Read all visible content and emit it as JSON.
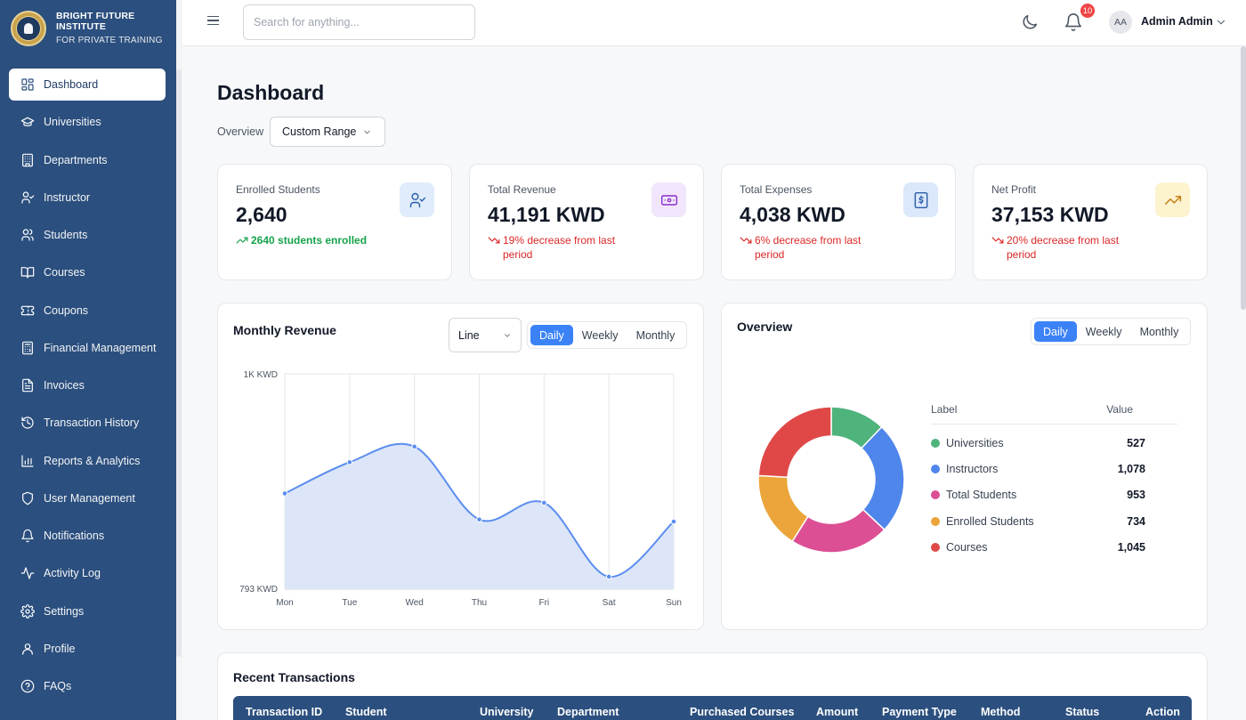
{
  "brand": {
    "name_line1": "BRIGHT FUTURE INSTITUTE",
    "name_line2": "FOR PRIVATE TRAINING"
  },
  "sidebar": {
    "items": [
      {
        "label": "Dashboard",
        "icon": "dashboard-icon",
        "active": true
      },
      {
        "label": "Universities",
        "icon": "graduation-cap-icon"
      },
      {
        "label": "Departments",
        "icon": "building-icon"
      },
      {
        "label": "Instructor",
        "icon": "user-check-icon"
      },
      {
        "label": "Students",
        "icon": "users-icon"
      },
      {
        "label": "Courses",
        "icon": "book-open-icon"
      },
      {
        "label": "Coupons",
        "icon": "ticket-icon"
      },
      {
        "label": "Financial Management",
        "icon": "calculator-icon"
      },
      {
        "label": "Invoices",
        "icon": "file-text-icon"
      },
      {
        "label": "Transaction History",
        "icon": "history-icon"
      },
      {
        "label": "Reports & Analytics",
        "icon": "bar-chart-icon"
      },
      {
        "label": "User Management",
        "icon": "shield-icon"
      },
      {
        "label": "Notifications",
        "icon": "bell-icon"
      },
      {
        "label": "Activity Log",
        "icon": "activity-icon"
      },
      {
        "label": "Settings",
        "icon": "gear-icon"
      },
      {
        "label": "Profile",
        "icon": "user-icon"
      },
      {
        "label": "FAQs",
        "icon": "help-circle-icon"
      }
    ]
  },
  "topbar": {
    "search_placeholder": "Search for anything...",
    "notification_count": "10",
    "avatar_initials": "AA",
    "user_name": "Admin Admin"
  },
  "page": {
    "title": "Dashboard",
    "overview_label": "Overview",
    "range_value": "Custom Range"
  },
  "stats": [
    {
      "label": "Enrolled Students",
      "value": "2,640",
      "trend": "2640 students enrolled",
      "direction": "up",
      "icon": "user-check-icon",
      "badge_color": "#e0ecfb",
      "icon_color": "#2b5fa8"
    },
    {
      "label": "Total Revenue",
      "value": "41,191 KWD",
      "trend": "19% decrease from last period",
      "direction": "down",
      "icon": "banknote-icon",
      "badge_color": "#f1e6fb",
      "icon_color": "#8b2fc9"
    },
    {
      "label": "Total Expenses",
      "value": "4,038 KWD",
      "trend": "6% decrease from last period",
      "direction": "down",
      "icon": "receipt-dollar-icon",
      "badge_color": "#dbe8fb",
      "icon_color": "#2b5fa8"
    },
    {
      "label": "Net Profit",
      "value": "37,153 KWD",
      "trend": "20% decrease from last period",
      "direction": "down",
      "icon": "trending-up-icon",
      "badge_color": "#fdf3cf",
      "icon_color": "#c27c0e"
    }
  ],
  "revenue_card": {
    "title": "Monthly Revenue",
    "type_select": "Line",
    "periods": [
      "Daily",
      "Weekly",
      "Monthly"
    ],
    "active_period": "Daily"
  },
  "overview_card": {
    "title": "Overview",
    "periods": [
      "Daily",
      "Weekly",
      "Monthly"
    ],
    "active_period": "Daily",
    "col_label": "Label",
    "col_value": "Value"
  },
  "transactions": {
    "title": "Recent Transactions",
    "columns": [
      "Transaction ID",
      "Student",
      "University",
      "Department",
      "Purchased Courses",
      "Amount",
      "Payment Type",
      "Method",
      "Status",
      "Action"
    ]
  },
  "chart_data": [
    {
      "type": "area",
      "title": "Monthly Revenue",
      "categories": [
        "Mon",
        "Tue",
        "Wed",
        "Thu",
        "Fri",
        "Sat",
        "Sun"
      ],
      "values": [
        885,
        915,
        930,
        860,
        876,
        805,
        858
      ],
      "ylim": [
        793,
        1000
      ],
      "ytick_labels": [
        "1K KWD",
        "793 KWD"
      ],
      "grid": true,
      "color": "#5b8def",
      "fill": "#dce6f8"
    },
    {
      "type": "pie",
      "title": "Overview",
      "series": [
        {
          "name": "Universities",
          "value": 527,
          "display": "527",
          "color": "#4fb37c"
        },
        {
          "name": "Instructors",
          "value": 1078,
          "display": "1,078",
          "color": "#4f86ec"
        },
        {
          "name": "Total Students",
          "value": 953,
          "display": "953",
          "color": "#dc4f95"
        },
        {
          "name": "Enrolled Students",
          "value": 734,
          "display": "734",
          "color": "#eba53a"
        },
        {
          "name": "Courses",
          "value": 1045,
          "display": "1,045",
          "color": "#e04848"
        }
      ]
    }
  ]
}
